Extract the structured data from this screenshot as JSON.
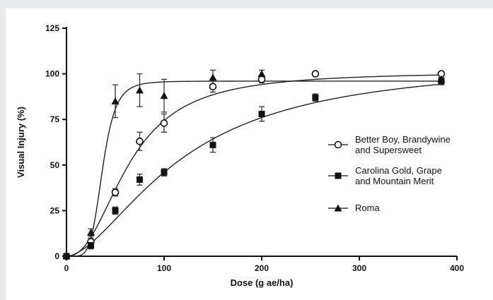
{
  "chart_data": {
    "type": "scatter",
    "title": "",
    "xlabel": "Dose (g ae/ha)",
    "ylabel": "Visual Injury (%)",
    "xlim": [
      0,
      400
    ],
    "ylim": [
      0,
      125
    ],
    "xticks": [
      0,
      100,
      200,
      300,
      400
    ],
    "yticks": [
      0,
      25,
      50,
      75,
      100,
      125
    ],
    "grid": false,
    "legend_position": "right",
    "series": [
      {
        "name": "Better Boy, Brandywine and Supersweet",
        "marker": "open-circle",
        "x": [
          0,
          25,
          50,
          75,
          100,
          150,
          200,
          255,
          384
        ],
        "y": [
          0,
          8,
          35,
          63,
          73,
          93,
          97,
          100,
          100
        ],
        "error": [
          0,
          2,
          2,
          5,
          5,
          3,
          2,
          1,
          1
        ],
        "fit": {
          "ed50": 64,
          "slope": 2.3,
          "top": 101
        }
      },
      {
        "name": "Carolina Gold, Grape and Mountain Merit",
        "marker": "filled-square",
        "x": [
          0,
          25,
          50,
          75,
          100,
          150,
          200,
          255,
          384
        ],
        "y": [
          0,
          6,
          25,
          42,
          46,
          61,
          78,
          87,
          96
        ],
        "error": [
          0,
          2,
          2,
          3,
          2,
          4,
          4,
          2,
          2
        ],
        "fit": {
          "ed50": 118,
          "slope": 1.7,
          "top": 107
        }
      },
      {
        "name": "Roma",
        "marker": "filled-triangle",
        "x": [
          0,
          25,
          50,
          75,
          100,
          150,
          200,
          384
        ],
        "y": [
          0,
          13,
          85,
          91,
          88,
          98,
          100,
          97
        ],
        "error": [
          0,
          2,
          9,
          9,
          9,
          4,
          2,
          2
        ],
        "fit": {
          "ed50": 37,
          "slope": 5.5,
          "top": 96
        }
      }
    ]
  }
}
